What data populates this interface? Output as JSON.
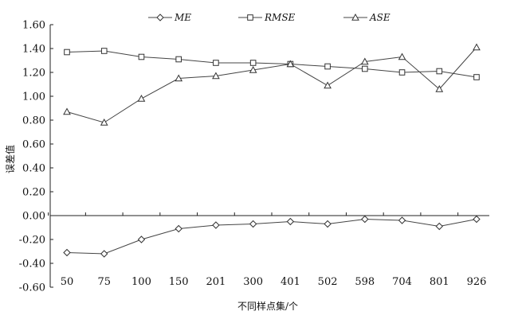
{
  "chart_data": {
    "type": "line",
    "title": "",
    "xlabel": "不同样点集/个",
    "ylabel": "误差值",
    "categories": [
      "50",
      "75",
      "100",
      "150",
      "201",
      "300",
      "401",
      "502",
      "598",
      "704",
      "801",
      "926"
    ],
    "ylim": [
      -0.6,
      1.6
    ],
    "yticks": [
      "-0.60",
      "-0.40",
      "-0.20",
      "0.00",
      "0.20",
      "0.40",
      "0.60",
      "0.80",
      "1.00",
      "1.20",
      "1.40",
      "1.60"
    ],
    "legend_position": "top",
    "grid": false,
    "series": [
      {
        "name": "ME",
        "marker": "diamond",
        "values": [
          -0.31,
          -0.32,
          -0.2,
          -0.11,
          -0.08,
          -0.07,
          -0.05,
          -0.07,
          -0.03,
          -0.04,
          -0.09,
          -0.03
        ]
      },
      {
        "name": "RMSE",
        "marker": "square",
        "values": [
          1.37,
          1.38,
          1.33,
          1.31,
          1.28,
          1.28,
          1.27,
          1.25,
          1.23,
          1.2,
          1.21,
          1.16
        ]
      },
      {
        "name": "ASE",
        "marker": "triangle",
        "values": [
          0.87,
          0.78,
          0.98,
          1.15,
          1.17,
          1.22,
          1.27,
          1.09,
          1.29,
          1.33,
          1.06,
          1.41
        ]
      }
    ]
  }
}
